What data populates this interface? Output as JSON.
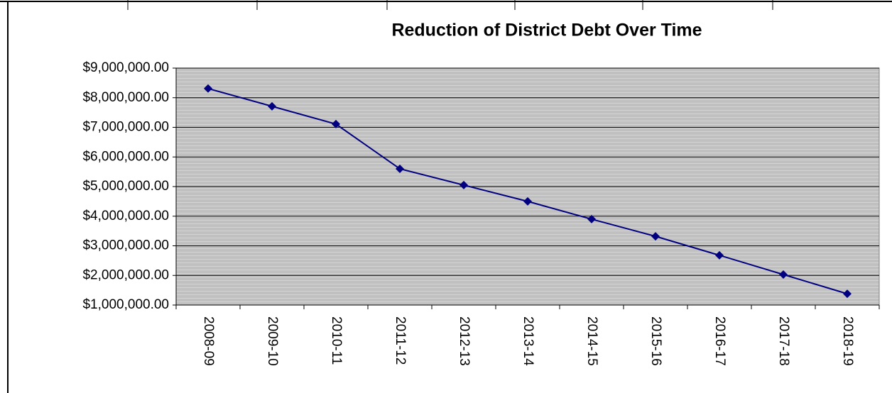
{
  "chart_data": {
    "type": "line",
    "title": "Reduction of District Debt Over Time",
    "categories": [
      "2008-09",
      "2009-10",
      "2010-11",
      "2011-12",
      "2012-13",
      "2013-14",
      "2014-15",
      "2015-16",
      "2016-17",
      "2017-18",
      "2018-19"
    ],
    "values": [
      8310000,
      7710000,
      7110000,
      5600000,
      5050000,
      4500000,
      3900000,
      3320000,
      2680000,
      2030000,
      1380000
    ],
    "color": "#000080",
    "ylim": [
      1000000,
      9000000
    ],
    "yticks": [
      {
        "value": 1000000,
        "label": "$1,000,000.00"
      },
      {
        "value": 2000000,
        "label": "$2,000,000.00"
      },
      {
        "value": 3000000,
        "label": "$3,000,000.00"
      },
      {
        "value": 4000000,
        "label": "$4,000,000.00"
      },
      {
        "value": 5000000,
        "label": "$5,000,000.00"
      },
      {
        "value": 6000000,
        "label": "$6,000,000.00"
      },
      {
        "value": 7000000,
        "label": "$7,000,000.00"
      },
      {
        "value": 8000000,
        "label": "$8,000,000.00"
      },
      {
        "value": 9000000,
        "label": "$9,000,000.00"
      }
    ],
    "grid": true
  }
}
